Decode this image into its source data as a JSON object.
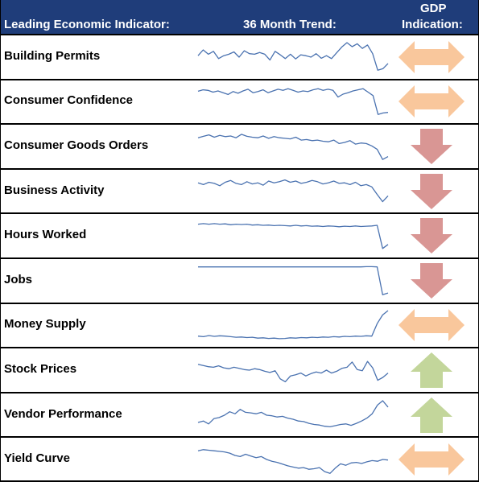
{
  "header": {
    "indicator": "Leading Economic Indicator:",
    "trend": "36 Month Trend:",
    "gdp_line1": "GDP",
    "gdp_line2": "Indication:"
  },
  "colors": {
    "header_bg": "#1f3d7a",
    "sparkline": "#4a72b0",
    "neutral_arrow": "#f9c79c",
    "down_arrow": "#d99694",
    "up_arrow": "#c3d69b"
  },
  "chart_data": {
    "type": "table",
    "indicators": [
      {
        "name": "Building Permits",
        "indication": "neutral",
        "trend": [
          0.55,
          0.75,
          0.6,
          0.7,
          0.45,
          0.55,
          0.6,
          0.68,
          0.5,
          0.72,
          0.62,
          0.6,
          0.66,
          0.6,
          0.4,
          0.7,
          0.58,
          0.45,
          0.6,
          0.44,
          0.58,
          0.55,
          0.5,
          0.62,
          0.46,
          0.55,
          0.45,
          0.65,
          0.85,
          1.0,
          0.86,
          0.96,
          0.8,
          0.92,
          0.62,
          0.05,
          0.1,
          0.28
        ]
      },
      {
        "name": "Consumer Confidence",
        "indication": "neutral",
        "trend": [
          0.85,
          0.9,
          0.88,
          0.82,
          0.86,
          0.8,
          0.74,
          0.84,
          0.78,
          0.86,
          0.92,
          0.8,
          0.84,
          0.9,
          0.8,
          0.86,
          0.92,
          0.88,
          0.94,
          0.88,
          0.82,
          0.86,
          0.84,
          0.9,
          0.94,
          0.88,
          0.92,
          0.88,
          0.65,
          0.75,
          0.8,
          0.86,
          0.9,
          0.94,
          0.82,
          0.7,
          0.05,
          0.1,
          0.12
        ]
      },
      {
        "name": "Consumer Goods Orders",
        "indication": "down",
        "trend": [
          0.8,
          0.85,
          0.9,
          0.82,
          0.88,
          0.84,
          0.86,
          0.8,
          0.92,
          0.85,
          0.82,
          0.8,
          0.86,
          0.78,
          0.84,
          0.8,
          0.78,
          0.76,
          0.82,
          0.72,
          0.74,
          0.7,
          0.72,
          0.68,
          0.66,
          0.72,
          0.6,
          0.64,
          0.7,
          0.58,
          0.62,
          0.6,
          0.52,
          0.4,
          0.05,
          0.15
        ]
      },
      {
        "name": "Business Activity",
        "indication": "down",
        "trend": [
          0.8,
          0.74,
          0.82,
          0.78,
          0.7,
          0.82,
          0.88,
          0.78,
          0.74,
          0.84,
          0.76,
          0.8,
          0.72,
          0.86,
          0.8,
          0.84,
          0.9,
          0.82,
          0.86,
          0.78,
          0.82,
          0.88,
          0.84,
          0.76,
          0.8,
          0.86,
          0.78,
          0.8,
          0.74,
          0.82,
          0.7,
          0.74,
          0.66,
          0.4,
          0.15,
          0.35
        ]
      },
      {
        "name": "Hours Worked",
        "indication": "down",
        "trend": [
          0.9,
          0.92,
          0.9,
          0.92,
          0.9,
          0.91,
          0.88,
          0.9,
          0.89,
          0.9,
          0.87,
          0.88,
          0.86,
          0.87,
          0.85,
          0.86,
          0.85,
          0.84,
          0.86,
          0.84,
          0.85,
          0.83,
          0.84,
          0.82,
          0.84,
          0.83,
          0.81,
          0.83,
          0.82,
          0.84,
          0.82,
          0.83,
          0.84,
          0.86,
          0.06,
          0.2
        ]
      },
      {
        "name": "Jobs",
        "indication": "down",
        "trend": [
          0.98,
          0.98,
          0.98,
          0.98,
          0.98,
          0.98,
          0.98,
          0.98,
          0.98,
          0.98,
          0.98,
          0.98,
          0.98,
          0.98,
          0.98,
          0.98,
          0.98,
          0.98,
          0.98,
          0.98,
          0.98,
          0.98,
          0.98,
          0.98,
          0.98,
          0.98,
          0.98,
          0.98,
          0.98,
          0.98,
          0.98,
          0.99,
          0.99,
          0.98,
          0.02,
          0.08
        ]
      },
      {
        "name": "Money Supply",
        "indication": "neutral",
        "trend": [
          0.12,
          0.1,
          0.14,
          0.11,
          0.13,
          0.12,
          0.1,
          0.08,
          0.09,
          0.07,
          0.08,
          0.05,
          0.06,
          0.04,
          0.05,
          0.03,
          0.04,
          0.06,
          0.05,
          0.07,
          0.06,
          0.08,
          0.07,
          0.09,
          0.08,
          0.1,
          0.09,
          0.11,
          0.1,
          0.12,
          0.11,
          0.13,
          0.12,
          0.55,
          0.85,
          1.0
        ]
      },
      {
        "name": "Stock Prices",
        "indication": "up",
        "trend": [
          0.7,
          0.66,
          0.62,
          0.6,
          0.65,
          0.58,
          0.55,
          0.6,
          0.56,
          0.52,
          0.5,
          0.55,
          0.52,
          0.46,
          0.42,
          0.48,
          0.2,
          0.1,
          0.3,
          0.34,
          0.4,
          0.3,
          0.38,
          0.44,
          0.4,
          0.5,
          0.4,
          0.46,
          0.56,
          0.6,
          0.78,
          0.52,
          0.48,
          0.8,
          0.58,
          0.15,
          0.25,
          0.4
        ]
      },
      {
        "name": "Vendor Performance",
        "indication": "up",
        "trend": [
          0.25,
          0.3,
          0.2,
          0.38,
          0.42,
          0.5,
          0.62,
          0.55,
          0.7,
          0.6,
          0.58,
          0.55,
          0.6,
          0.5,
          0.48,
          0.44,
          0.46,
          0.4,
          0.36,
          0.3,
          0.28,
          0.22,
          0.18,
          0.16,
          0.12,
          0.1,
          0.14,
          0.18,
          0.2,
          0.15,
          0.22,
          0.3,
          0.4,
          0.55,
          0.85,
          1.0,
          0.78
        ]
      },
      {
        "name": "Yield Curve",
        "indication": "neutral",
        "trend": [
          0.8,
          0.84,
          0.82,
          0.8,
          0.78,
          0.76,
          0.72,
          0.64,
          0.6,
          0.68,
          0.62,
          0.56,
          0.6,
          0.5,
          0.44,
          0.4,
          0.34,
          0.28,
          0.24,
          0.2,
          0.22,
          0.16,
          0.18,
          0.22,
          0.08,
          0.02,
          0.2,
          0.35,
          0.3,
          0.38,
          0.4,
          0.36,
          0.42,
          0.46,
          0.44,
          0.5,
          0.48
        ]
      }
    ]
  }
}
